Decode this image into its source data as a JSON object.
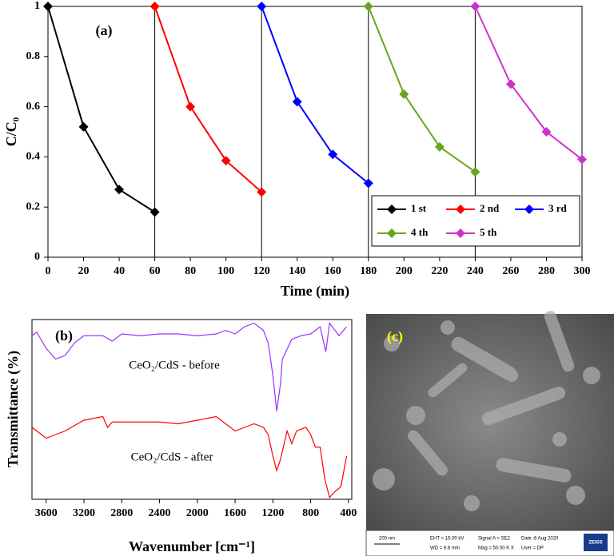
{
  "chart_data": [
    {
      "type": "line",
      "panel_label": "(a)",
      "xlabel": "Time (min)",
      "ylabel": "C/C₀",
      "xlim": [
        0,
        300
      ],
      "ylim": [
        0,
        1
      ],
      "xticks": [
        0,
        20,
        40,
        60,
        80,
        100,
        120,
        140,
        160,
        180,
        200,
        220,
        240,
        260,
        280,
        300
      ],
      "yticks": [
        0,
        0.2,
        0.4,
        0.6,
        0.8,
        1
      ],
      "vlines": [
        60,
        120,
        180,
        240
      ],
      "markers": true,
      "legend": "lower right",
      "series": [
        {
          "name": "1 st",
          "color": "#000000",
          "x": [
            0,
            20,
            40,
            60
          ],
          "values": [
            1,
            0.52,
            0.27,
            0.18
          ]
        },
        {
          "name": "2 nd",
          "color": "#ff0000",
          "x": [
            60,
            80,
            100,
            120
          ],
          "values": [
            1,
            0.6,
            0.385,
            0.26
          ]
        },
        {
          "name": "3 rd",
          "color": "#0000ff",
          "x": [
            120,
            140,
            160,
            180
          ],
          "values": [
            1,
            0.62,
            0.41,
            0.295
          ]
        },
        {
          "name": "4 th",
          "color": "#66a61e",
          "x": [
            180,
            200,
            220,
            240
          ],
          "values": [
            1,
            0.65,
            0.44,
            0.34
          ]
        },
        {
          "name": "5 th",
          "color": "#cc33cc",
          "x": [
            240,
            260,
            280,
            300
          ],
          "values": [
            1,
            0.69,
            0.5,
            0.39
          ]
        }
      ]
    },
    {
      "type": "line",
      "panel_label": "(b)",
      "xlabel": "Wavenumber [cm⁻¹]",
      "ylabel": "Transmittance  (%)",
      "xlim": [
        3750,
        365
      ],
      "ylim": [
        0,
        100
      ],
      "xticks": [
        3600,
        3200,
        2800,
        2400,
        2000,
        1600,
        1200,
        800,
        400
      ],
      "markers": false,
      "series": [
        {
          "name": "CeO₂/CdS - before",
          "color": "#9933ff",
          "x": [
            3750,
            3700,
            3600,
            3500,
            3400,
            3300,
            3200,
            3000,
            2900,
            2800,
            2600,
            2400,
            2200,
            2000,
            1800,
            1700,
            1600,
            1500,
            1400,
            1300,
            1250,
            1200,
            1160,
            1120,
            1100,
            1000,
            900,
            800,
            700,
            640,
            600,
            500,
            420
          ],
          "values": [
            91,
            93,
            84,
            78,
            80,
            87,
            91,
            91,
            88,
            92,
            91,
            92,
            92,
            91,
            92,
            94,
            92,
            96,
            98,
            94,
            87,
            69,
            49,
            64,
            78,
            89,
            91,
            92,
            96,
            82,
            98,
            91,
            96
          ]
        },
        {
          "name": "CeO₂/CdS - after",
          "color": "#ff0000",
          "x": [
            3750,
            3700,
            3600,
            3500,
            3400,
            3200,
            3000,
            2950,
            2900,
            2600,
            2400,
            2200,
            2000,
            1800,
            1700,
            1600,
            1500,
            1400,
            1300,
            1250,
            1200,
            1160,
            1120,
            1050,
            1000,
            950,
            850,
            800,
            750,
            700,
            650,
            600,
            550,
            480,
            420
          ],
          "values": [
            40,
            38,
            34,
            36,
            38,
            44,
            46,
            40,
            43,
            43,
            43,
            42,
            44,
            46,
            42,
            38,
            40,
            42,
            40,
            36,
            24,
            16,
            22,
            38,
            31,
            38,
            40,
            36,
            29,
            29,
            11,
            1,
            4,
            7,
            24
          ]
        }
      ]
    }
  ],
  "sem_image": {
    "panel_label": "(c)",
    "scale_bar": "200 nm",
    "info": [
      "EHT = 15.00 kV",
      "WD = 6.8 mm",
      "Signal A = SE2",
      "Mag = 50.00 K X",
      "Date :6 Aug 2020",
      "User = DP"
    ],
    "brand": "ZEISS"
  }
}
